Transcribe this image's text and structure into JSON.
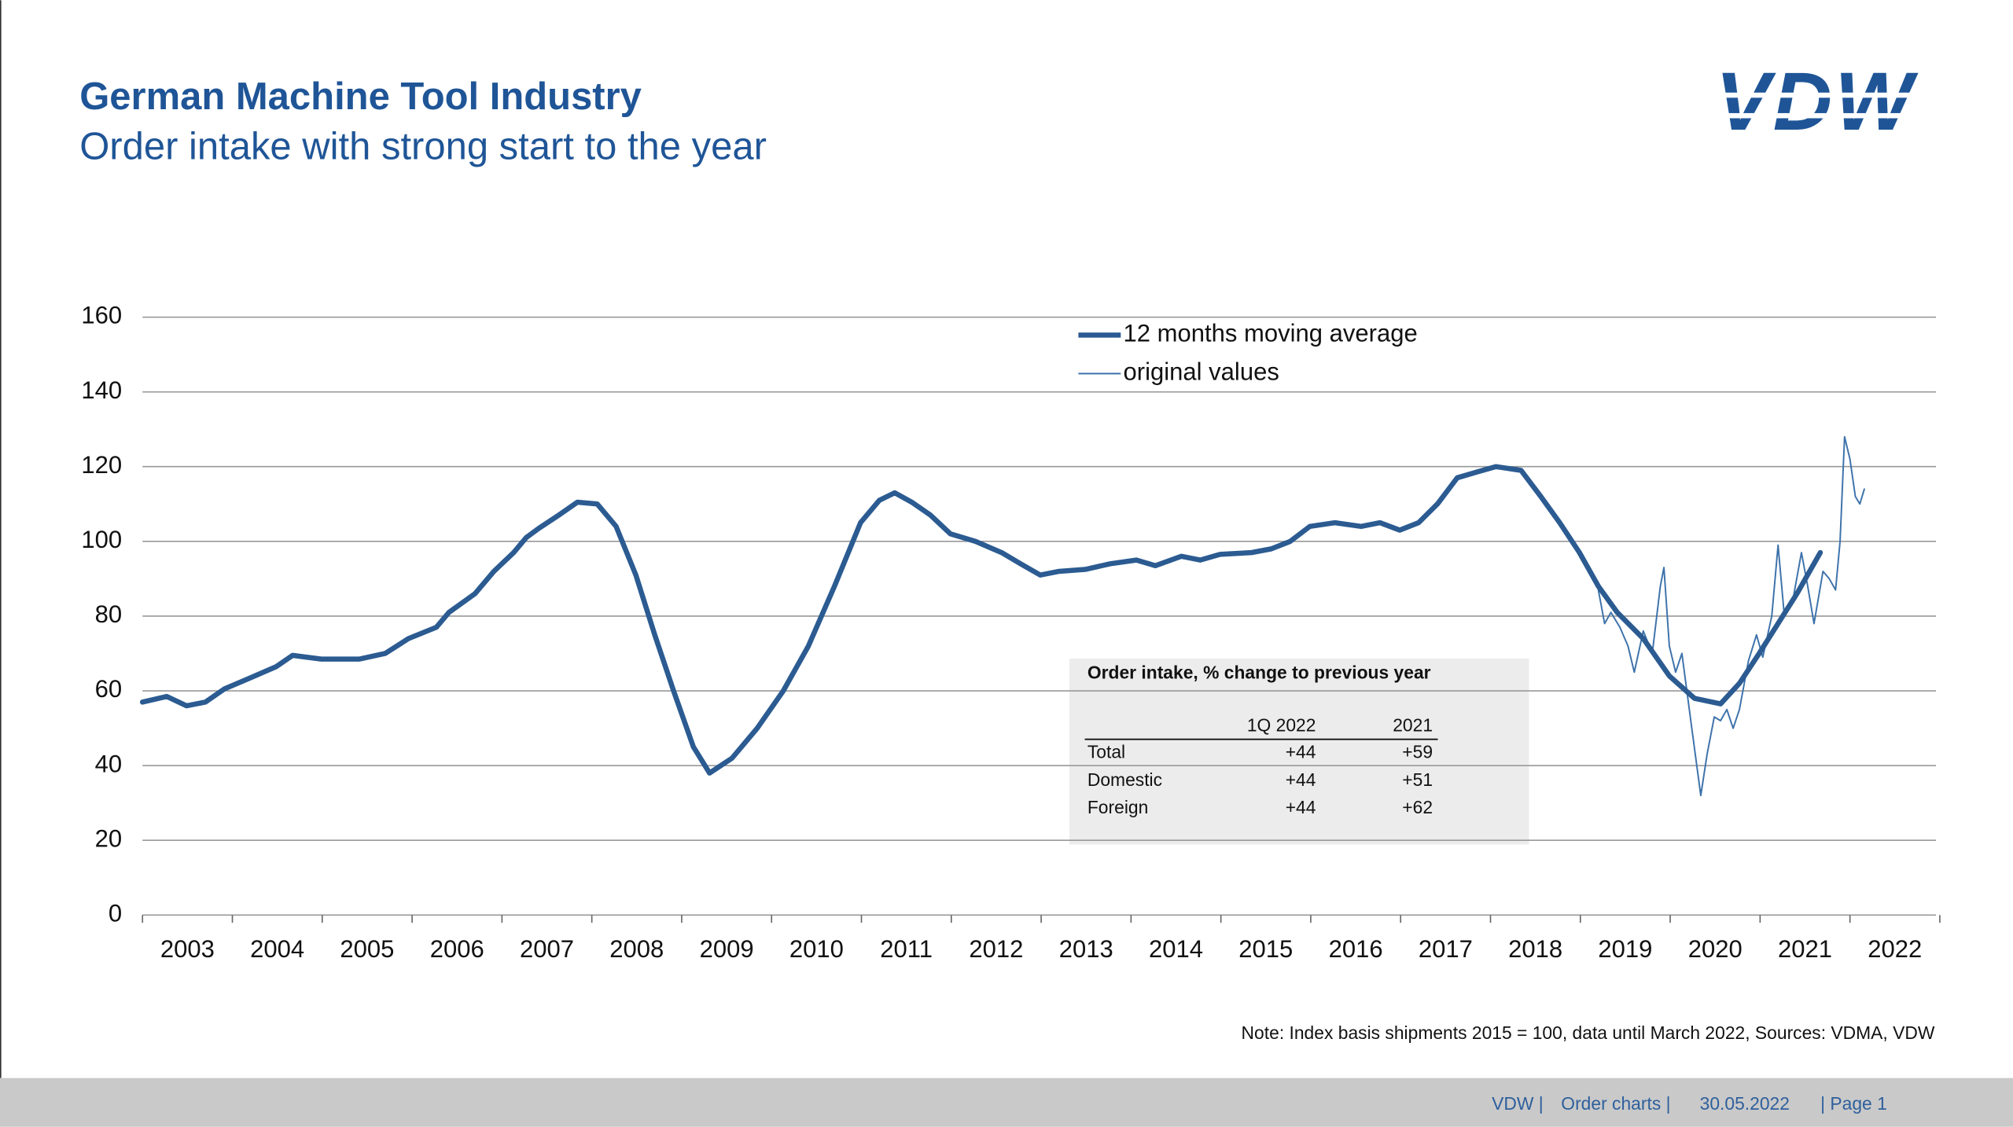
{
  "logo": "VDW",
  "footer": [
    "VDW  |",
    "Order charts  |",
    "30.05.2022",
    "|  Page 1"
  ],
  "chart_data": {
    "type": "line",
    "title": "German Machine Tool Industry",
    "subtitle": "Order intake with strong start to the year",
    "note": "Note: Index basis shipments 2015 = 100, data until March 2022, Sources: VDMA,  VDW",
    "xlim": [
      2003,
      2023
    ],
    "xticks": [
      {
        "value": 2003,
        "label": "2003"
      },
      {
        "value": 2004,
        "label": "2004"
      },
      {
        "value": 2005,
        "label": "2005"
      },
      {
        "value": 2006,
        "label": "2006"
      },
      {
        "value": 2007,
        "label": "2007"
      },
      {
        "value": 2008,
        "label": "2008"
      },
      {
        "value": 2009,
        "label": "2009"
      },
      {
        "value": 2010,
        "label": "2010"
      },
      {
        "value": 2011,
        "label": "2011"
      },
      {
        "value": 2012,
        "label": "2012"
      },
      {
        "value": 2013,
        "label": "2013"
      },
      {
        "value": 2014,
        "label": "2014"
      },
      {
        "value": 2015,
        "label": "2015"
      },
      {
        "value": 2016,
        "label": "2016"
      },
      {
        "value": 2017,
        "label": "2017"
      },
      {
        "value": 2018,
        "label": "2018"
      },
      {
        "value": 2019,
        "label": "2019"
      },
      {
        "value": 2020,
        "label": "2020"
      },
      {
        "value": 2021,
        "label": "2021"
      },
      {
        "value": 2022,
        "label": "2022"
      }
    ],
    "ylim": [
      0,
      160
    ],
    "yticks": [
      0,
      20,
      40,
      60,
      80,
      100,
      120,
      140,
      160
    ],
    "grid": true,
    "legend": "top",
    "series": [
      {
        "name": "12 months moving average",
        "color": "#2b5b91",
        "width": 4,
        "x": [
          2003.0,
          2003.27,
          2003.49,
          2003.7,
          2003.91,
          2004.2,
          2004.49,
          2004.67,
          2004.99,
          2005.2,
          2005.41,
          2005.7,
          2005.96,
          2006.27,
          2006.41,
          2006.7,
          2006.91,
          2007.13,
          2007.27,
          2007.41,
          2007.63,
          2007.84,
          2008.06,
          2008.27,
          2008.49,
          2008.7,
          2008.91,
          2009.13,
          2009.31,
          2009.56,
          2009.84,
          2010.13,
          2010.41,
          2010.7,
          2010.99,
          2011.2,
          2011.37,
          2011.56,
          2011.77,
          2011.99,
          2012.27,
          2012.56,
          2012.77,
          2012.99,
          2013.2,
          2013.49,
          2013.77,
          2014.06,
          2014.27,
          2014.56,
          2014.77,
          2014.99,
          2015.34,
          2015.56,
          2015.77,
          2015.99,
          2016.27,
          2016.56,
          2016.77,
          2016.99,
          2017.2,
          2017.41,
          2017.63,
          2017.84,
          2018.06,
          2018.34,
          2018.56,
          2018.77,
          2018.99,
          2019.2,
          2019.41,
          2019.7,
          2019.99,
          2020.27,
          2020.56,
          2020.77,
          2020.99,
          2021.2,
          2021.41,
          2021.67
        ],
        "values": [
          57,
          58.5,
          56,
          57,
          60.5,
          63.5,
          66.5,
          69.5,
          68.5,
          68.5,
          68.5,
          70,
          74,
          77,
          81,
          86,
          92,
          97,
          101,
          103.5,
          107,
          110.5,
          110,
          104,
          91,
          75,
          60,
          45,
          38,
          42,
          50,
          60,
          72,
          88,
          105,
          111,
          113,
          110.5,
          107,
          102,
          100,
          97,
          94,
          91,
          92,
          92.5,
          94,
          95,
          93.5,
          96,
          95,
          96.5,
          97,
          98,
          100,
          104,
          105,
          104,
          105,
          103,
          105,
          110,
          117,
          118.5,
          120,
          119,
          112,
          105,
          97,
          88,
          81,
          74,
          64,
          58,
          56.5,
          62,
          70,
          78,
          86,
          97
        ]
      },
      {
        "name": "original values",
        "color": "#3d72aa",
        "width": 1.2,
        "x": [
          2019.2,
          2019.27,
          2019.34,
          2019.44,
          2019.53,
          2019.6,
          2019.7,
          2019.8,
          2019.89,
          2019.93,
          2019.99,
          2020.06,
          2020.13,
          2020.24,
          2020.34,
          2020.41,
          2020.49,
          2020.56,
          2020.63,
          2020.7,
          2020.77,
          2020.87,
          2020.96,
          2021.03,
          2021.13,
          2021.2,
          2021.27,
          2021.37,
          2021.46,
          2021.53,
          2021.6,
          2021.7,
          2021.77,
          2021.84,
          2021.89,
          2021.94,
          2022.0,
          2022.06,
          2022.11,
          2022.16
        ],
        "values": [
          87,
          78,
          81,
          77,
          72,
          65,
          76,
          70,
          88,
          93,
          72,
          65,
          70,
          50,
          32,
          43,
          53,
          52,
          55,
          50,
          55,
          68,
          75,
          69,
          80,
          99,
          80,
          85,
          97,
          88,
          78,
          92,
          90,
          87,
          100,
          128,
          122,
          112,
          110,
          114
        ]
      }
    ],
    "table": {
      "title": "Order intake, %  change to previous year",
      "columns": [
        "1Q 2022",
        "2021"
      ],
      "rows": [
        [
          "Total",
          "+44",
          "+59"
        ],
        [
          "Domestic",
          "+44",
          "+51"
        ],
        [
          "Foreign",
          "+44",
          "+62"
        ]
      ]
    }
  }
}
